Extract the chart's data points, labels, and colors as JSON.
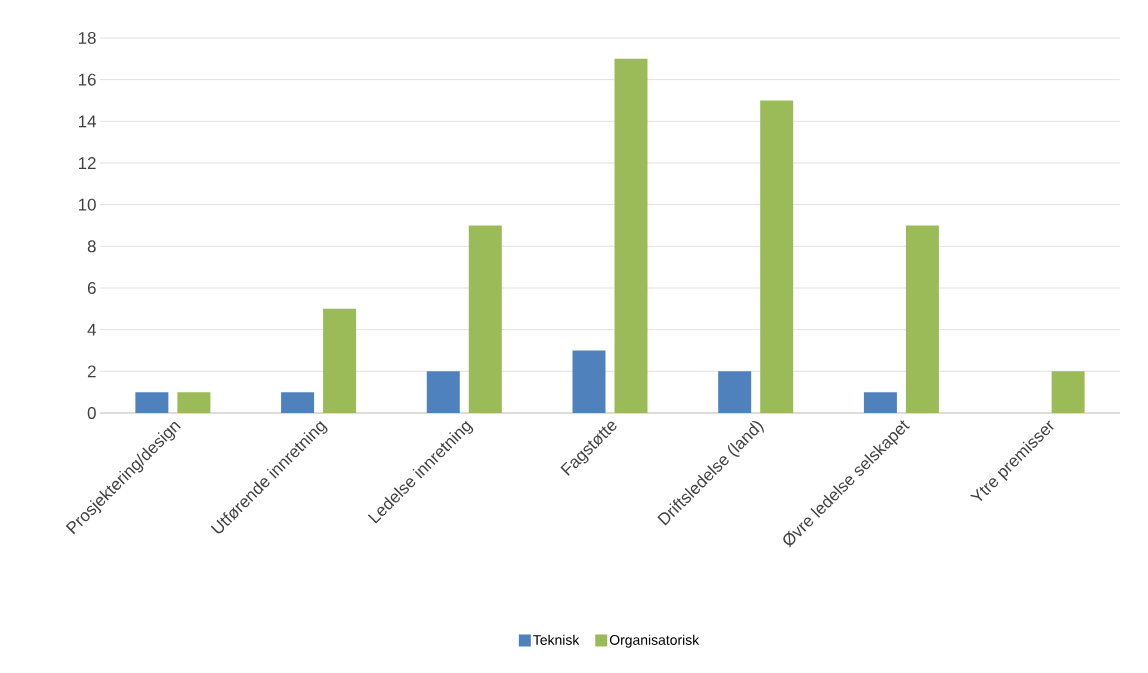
{
  "chart_data": {
    "type": "bar",
    "categories": [
      "Prosjektering/design",
      "Utførende innretning",
      "Ledelse innretning",
      "Fagstøtte",
      "Driftsledelse (land)",
      "Øvre ledelse selskapet",
      "Ytre premisser"
    ],
    "series": [
      {
        "name": "Teknisk",
        "color": "#4f81bd",
        "values": [
          1,
          1,
          2,
          3,
          2,
          1,
          null
        ]
      },
      {
        "name": "Organisatorisk",
        "color": "#9bbb59",
        "values": [
          1,
          5,
          9,
          17,
          15,
          9,
          2
        ]
      }
    ],
    "ylim": [
      0,
      18
    ],
    "yticks": [
      0,
      2,
      4,
      6,
      8,
      10,
      12,
      14,
      16,
      18
    ],
    "grid": "y",
    "legend": "bottom"
  }
}
